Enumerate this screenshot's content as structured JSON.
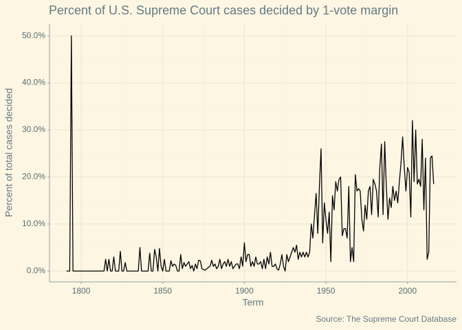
{
  "chart_data": {
    "type": "line",
    "title": "Percent of U.S. Supreme Court cases decided by 1-vote margin",
    "x_label": "Term",
    "y_label": "Percent of total cases decided",
    "caption": "Source: The Supreme Court Database",
    "x": [
      1791,
      1792,
      1793,
      1794,
      1795,
      1796,
      1797,
      1798,
      1799,
      1800,
      1801,
      1802,
      1803,
      1804,
      1805,
      1806,
      1807,
      1808,
      1809,
      1810,
      1811,
      1812,
      1813,
      1814,
      1815,
      1816,
      1817,
      1818,
      1819,
      1820,
      1821,
      1822,
      1823,
      1824,
      1825,
      1826,
      1827,
      1828,
      1829,
      1830,
      1831,
      1832,
      1833,
      1834,
      1835,
      1836,
      1837,
      1838,
      1839,
      1840,
      1841,
      1842,
      1843,
      1844,
      1845,
      1846,
      1847,
      1848,
      1849,
      1850,
      1851,
      1852,
      1853,
      1854,
      1855,
      1856,
      1857,
      1858,
      1859,
      1860,
      1861,
      1862,
      1863,
      1864,
      1865,
      1866,
      1867,
      1868,
      1869,
      1870,
      1871,
      1872,
      1873,
      1874,
      1875,
      1876,
      1877,
      1878,
      1879,
      1880,
      1881,
      1882,
      1883,
      1884,
      1885,
      1886,
      1887,
      1888,
      1889,
      1890,
      1891,
      1892,
      1893,
      1894,
      1895,
      1896,
      1897,
      1898,
      1899,
      1900,
      1901,
      1902,
      1903,
      1904,
      1905,
      1906,
      1907,
      1908,
      1909,
      1910,
      1911,
      1912,
      1913,
      1914,
      1915,
      1916,
      1917,
      1918,
      1919,
      1920,
      1921,
      1922,
      1923,
      1924,
      1925,
      1926,
      1927,
      1928,
      1929,
      1930,
      1931,
      1932,
      1933,
      1934,
      1935,
      1936,
      1937,
      1938,
      1939,
      1940,
      1941,
      1942,
      1943,
      1944,
      1945,
      1946,
      1947,
      1948,
      1949,
      1950,
      1951,
      1952,
      1953,
      1954,
      1955,
      1956,
      1957,
      1958,
      1959,
      1960,
      1961,
      1962,
      1963,
      1964,
      1965,
      1966,
      1967,
      1968,
      1969,
      1970,
      1971,
      1972,
      1973,
      1974,
      1975,
      1976,
      1977,
      1978,
      1979,
      1980,
      1981,
      1982,
      1983,
      1984,
      1985,
      1986,
      1987,
      1988,
      1989,
      1990,
      1991,
      1992,
      1993,
      1994,
      1995,
      1996,
      1997,
      1998,
      1999,
      2000,
      2001,
      2002,
      2003,
      2004,
      2005,
      2006,
      2007,
      2008,
      2009,
      2010,
      2011,
      2012,
      2013,
      2014,
      2015,
      2016
    ],
    "series": [
      {
        "name": "margin",
        "color": "#000000",
        "values": [
          0,
          0,
          0,
          50,
          0,
          0,
          0,
          0,
          0,
          0,
          0,
          0,
          0,
          0,
          0,
          0,
          0,
          0,
          0,
          0,
          0,
          0,
          0,
          0,
          2.5,
          0,
          2.5,
          0,
          0,
          3,
          0,
          0,
          0,
          4.2,
          0,
          0,
          1.8,
          0,
          0,
          0,
          0,
          0,
          0,
          0,
          0,
          5,
          0,
          0,
          0,
          0,
          0,
          3.8,
          0,
          0,
          4.6,
          3,
          0,
          4.8,
          1,
          0,
          2.5,
          0,
          0,
          0,
          2.2,
          1,
          1.5,
          1.2,
          0,
          0,
          3.5,
          0.5,
          1.8,
          1,
          1.5,
          2,
          0.5,
          1.2,
          0,
          1.5,
          0.5,
          2.3,
          2.2,
          0.5,
          0.3,
          0.2,
          0.5,
          0.8,
          1,
          2.3,
          1,
          1.5,
          0.5,
          1,
          2.5,
          0.5,
          1.5,
          2,
          1,
          2.5,
          1,
          2,
          0.5,
          1,
          1.5,
          1.5,
          0.5,
          3,
          1,
          6,
          2,
          3.5,
          3.5,
          1,
          2,
          1,
          3,
          1.5,
          1.5,
          2,
          0.5,
          2.5,
          0.5,
          3,
          1.5,
          4,
          1,
          1,
          1.5,
          0.5,
          0.2,
          1.5,
          3.5,
          1,
          0,
          3.5,
          2,
          3,
          4,
          5,
          4,
          5.5,
          2.5,
          4,
          3,
          4,
          3,
          4,
          3,
          4,
          10,
          7,
          12,
          16.5,
          8,
          18,
          26,
          6,
          14.5,
          11,
          8,
          12.5,
          2,
          16,
          13,
          19,
          17,
          19.5,
          20,
          7.5,
          9,
          9,
          7,
          18,
          2,
          5,
          2,
          20.5,
          17,
          17.5,
          17,
          11,
          8.5,
          14,
          11,
          17,
          18,
          12,
          19.5,
          18.5,
          17,
          11.5,
          22,
          27,
          12,
          27.5,
          18,
          11,
          15.5,
          13.5,
          18,
          15,
          17,
          14.5,
          19,
          23,
          28.5,
          22,
          17,
          22,
          21,
          11.5,
          32,
          19,
          30,
          18.5,
          19.5,
          18,
          28,
          13,
          24,
          2.5,
          4,
          24,
          24.5,
          18.5
        ]
      }
    ],
    "xlim": [
      1780.6,
      2030
    ],
    "ylim": [
      -2.3,
      52.5
    ],
    "xticks": [
      1800,
      1850,
      1900,
      1950,
      2000
    ],
    "yticks": [
      {
        "value": 0,
        "label": "0.0%"
      },
      {
        "value": 10,
        "label": "10.0%"
      },
      {
        "value": 20,
        "label": "20.0%"
      },
      {
        "value": 30,
        "label": "30.0%"
      },
      {
        "value": 40,
        "label": "40.0%"
      },
      {
        "value": 50,
        "label": "50.0%"
      }
    ],
    "grid": true
  }
}
